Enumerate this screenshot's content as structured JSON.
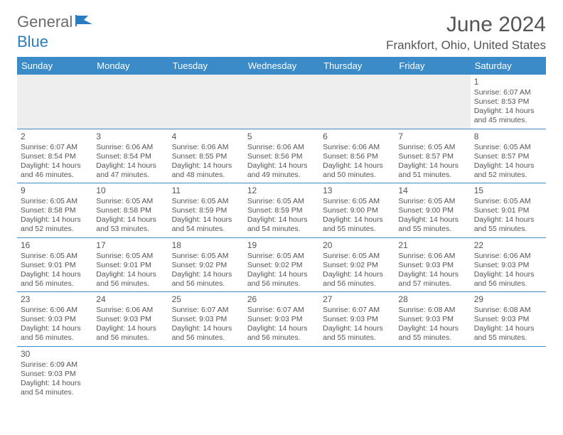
{
  "logo": {
    "general": "General",
    "blue": "Blue"
  },
  "title": "June 2024",
  "location": "Frankfort, Ohio, United States",
  "colors": {
    "header_bg": "#3b8bc9",
    "header_text": "#ffffff",
    "border": "#3b8bc9",
    "blank_bg": "#eeeeee",
    "text": "#555555",
    "logo_blue": "#2a7bbf"
  },
  "weekdays": [
    "Sunday",
    "Monday",
    "Tuesday",
    "Wednesday",
    "Thursday",
    "Friday",
    "Saturday"
  ],
  "weeks": [
    [
      null,
      null,
      null,
      null,
      null,
      null,
      {
        "day": "1",
        "sunrise": "Sunrise: 6:07 AM",
        "sunset": "Sunset: 8:53 PM",
        "daylight": "Daylight: 14 hours and 45 minutes."
      }
    ],
    [
      {
        "day": "2",
        "sunrise": "Sunrise: 6:07 AM",
        "sunset": "Sunset: 8:54 PM",
        "daylight": "Daylight: 14 hours and 46 minutes."
      },
      {
        "day": "3",
        "sunrise": "Sunrise: 6:06 AM",
        "sunset": "Sunset: 8:54 PM",
        "daylight": "Daylight: 14 hours and 47 minutes."
      },
      {
        "day": "4",
        "sunrise": "Sunrise: 6:06 AM",
        "sunset": "Sunset: 8:55 PM",
        "daylight": "Daylight: 14 hours and 48 minutes."
      },
      {
        "day": "5",
        "sunrise": "Sunrise: 6:06 AM",
        "sunset": "Sunset: 8:56 PM",
        "daylight": "Daylight: 14 hours and 49 minutes."
      },
      {
        "day": "6",
        "sunrise": "Sunrise: 6:06 AM",
        "sunset": "Sunset: 8:56 PM",
        "daylight": "Daylight: 14 hours and 50 minutes."
      },
      {
        "day": "7",
        "sunrise": "Sunrise: 6:05 AM",
        "sunset": "Sunset: 8:57 PM",
        "daylight": "Daylight: 14 hours and 51 minutes."
      },
      {
        "day": "8",
        "sunrise": "Sunrise: 6:05 AM",
        "sunset": "Sunset: 8:57 PM",
        "daylight": "Daylight: 14 hours and 52 minutes."
      }
    ],
    [
      {
        "day": "9",
        "sunrise": "Sunrise: 6:05 AM",
        "sunset": "Sunset: 8:58 PM",
        "daylight": "Daylight: 14 hours and 52 minutes."
      },
      {
        "day": "10",
        "sunrise": "Sunrise: 6:05 AM",
        "sunset": "Sunset: 8:58 PM",
        "daylight": "Daylight: 14 hours and 53 minutes."
      },
      {
        "day": "11",
        "sunrise": "Sunrise: 6:05 AM",
        "sunset": "Sunset: 8:59 PM",
        "daylight": "Daylight: 14 hours and 54 minutes."
      },
      {
        "day": "12",
        "sunrise": "Sunrise: 6:05 AM",
        "sunset": "Sunset: 8:59 PM",
        "daylight": "Daylight: 14 hours and 54 minutes."
      },
      {
        "day": "13",
        "sunrise": "Sunrise: 6:05 AM",
        "sunset": "Sunset: 9:00 PM",
        "daylight": "Daylight: 14 hours and 55 minutes."
      },
      {
        "day": "14",
        "sunrise": "Sunrise: 6:05 AM",
        "sunset": "Sunset: 9:00 PM",
        "daylight": "Daylight: 14 hours and 55 minutes."
      },
      {
        "day": "15",
        "sunrise": "Sunrise: 6:05 AM",
        "sunset": "Sunset: 9:01 PM",
        "daylight": "Daylight: 14 hours and 55 minutes."
      }
    ],
    [
      {
        "day": "16",
        "sunrise": "Sunrise: 6:05 AM",
        "sunset": "Sunset: 9:01 PM",
        "daylight": "Daylight: 14 hours and 56 minutes."
      },
      {
        "day": "17",
        "sunrise": "Sunrise: 6:05 AM",
        "sunset": "Sunset: 9:01 PM",
        "daylight": "Daylight: 14 hours and 56 minutes."
      },
      {
        "day": "18",
        "sunrise": "Sunrise: 6:05 AM",
        "sunset": "Sunset: 9:02 PM",
        "daylight": "Daylight: 14 hours and 56 minutes."
      },
      {
        "day": "19",
        "sunrise": "Sunrise: 6:05 AM",
        "sunset": "Sunset: 9:02 PM",
        "daylight": "Daylight: 14 hours and 56 minutes."
      },
      {
        "day": "20",
        "sunrise": "Sunrise: 6:05 AM",
        "sunset": "Sunset: 9:02 PM",
        "daylight": "Daylight: 14 hours and 56 minutes."
      },
      {
        "day": "21",
        "sunrise": "Sunrise: 6:06 AM",
        "sunset": "Sunset: 9:03 PM",
        "daylight": "Daylight: 14 hours and 57 minutes."
      },
      {
        "day": "22",
        "sunrise": "Sunrise: 6:06 AM",
        "sunset": "Sunset: 9:03 PM",
        "daylight": "Daylight: 14 hours and 56 minutes."
      }
    ],
    [
      {
        "day": "23",
        "sunrise": "Sunrise: 6:06 AM",
        "sunset": "Sunset: 9:03 PM",
        "daylight": "Daylight: 14 hours and 56 minutes."
      },
      {
        "day": "24",
        "sunrise": "Sunrise: 6:06 AM",
        "sunset": "Sunset: 9:03 PM",
        "daylight": "Daylight: 14 hours and 56 minutes."
      },
      {
        "day": "25",
        "sunrise": "Sunrise: 6:07 AM",
        "sunset": "Sunset: 9:03 PM",
        "daylight": "Daylight: 14 hours and 56 minutes."
      },
      {
        "day": "26",
        "sunrise": "Sunrise: 6:07 AM",
        "sunset": "Sunset: 9:03 PM",
        "daylight": "Daylight: 14 hours and 56 minutes."
      },
      {
        "day": "27",
        "sunrise": "Sunrise: 6:07 AM",
        "sunset": "Sunset: 9:03 PM",
        "daylight": "Daylight: 14 hours and 55 minutes."
      },
      {
        "day": "28",
        "sunrise": "Sunrise: 6:08 AM",
        "sunset": "Sunset: 9:03 PM",
        "daylight": "Daylight: 14 hours and 55 minutes."
      },
      {
        "day": "29",
        "sunrise": "Sunrise: 6:08 AM",
        "sunset": "Sunset: 9:03 PM",
        "daylight": "Daylight: 14 hours and 55 minutes."
      }
    ],
    [
      {
        "day": "30",
        "sunrise": "Sunrise: 6:09 AM",
        "sunset": "Sunset: 9:03 PM",
        "daylight": "Daylight: 14 hours and 54 minutes."
      },
      null,
      null,
      null,
      null,
      null,
      null
    ]
  ]
}
